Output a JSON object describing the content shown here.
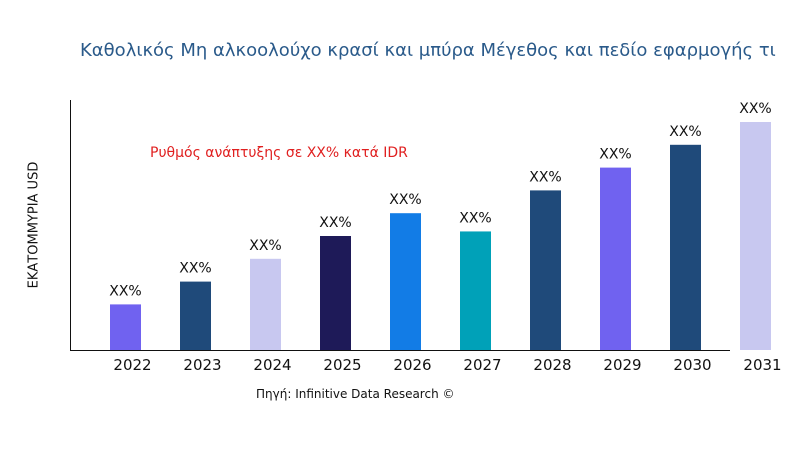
{
  "chart_data": {
    "type": "bar",
    "title": "Καθολικός Μη αλκοολούχο κρασί και μπύρα Μέγεθος και πεδίο εφαρμογής τι",
    "xlabel": "",
    "ylabel": "ΕΚΑΤΟΜΜΥΡΙΑ USD",
    "categories": [
      "2022",
      "2023",
      "2024",
      "2025",
      "2026",
      "2027",
      "2028",
      "2029",
      "2030",
      "2031"
    ],
    "values": [
      20,
      30,
      40,
      50,
      60,
      52,
      70,
      80,
      90,
      100
    ],
    "data_labels": [
      "XX%",
      "XX%",
      "XX%",
      "XX%",
      "XX%",
      "XX%",
      "XX%",
      "XX%",
      "XX%",
      "XX%"
    ],
    "colors": [
      "#7062f0",
      "#1f4a7a",
      "#c8c8f0",
      "#1e1a58",
      "#127ce6",
      "#00a1b8",
      "#1f4a7a",
      "#7062f0",
      "#1f4a7a",
      "#c8c8f0"
    ],
    "ylim": [
      0,
      110
    ],
    "grid": false,
    "annotation": "Ρυθμός ανάπτυξης σε XX% κατά IDR",
    "source": "Πηγή: Infinitive Data Research ©"
  }
}
